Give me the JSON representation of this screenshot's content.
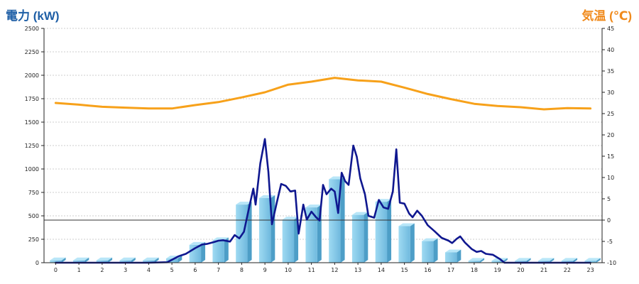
{
  "chart_data": {
    "type": "bar+line",
    "left_axis_title": "電力 (kW)",
    "right_axis_title": "気温 (℃)",
    "ylim_left": [
      0,
      2500
    ],
    "ylim_right": [
      -10,
      45
    ],
    "left_ticks": [
      0,
      250,
      500,
      750,
      1000,
      1250,
      1500,
      1750,
      2000,
      2250,
      2500
    ],
    "right_ticks": [
      -10,
      -5,
      0,
      5,
      10,
      15,
      20,
      25,
      30,
      35,
      40,
      45
    ],
    "categories": [
      "0",
      "1",
      "2",
      "3",
      "4",
      "5",
      "6",
      "7",
      "8",
      "9",
      "10",
      "11",
      "12",
      "13",
      "14",
      "15",
      "16",
      "17",
      "18",
      "19",
      "20",
      "21",
      "22",
      "23"
    ],
    "grid": true,
    "series": [
      {
        "kind": "bar",
        "axis": "left",
        "color": "#7fc8e8",
        "values": [
          25,
          25,
          25,
          25,
          25,
          45,
          190,
          240,
          620,
          690,
          460,
          590,
          890,
          510,
          650,
          390,
          230,
          110,
          20,
          20,
          20,
          20,
          20,
          20
        ]
      },
      {
        "kind": "line",
        "axis": "left",
        "color": "#0f178f",
        "points": [
          [
            0,
            0
          ],
          [
            1,
            0
          ],
          [
            2,
            0
          ],
          [
            3,
            0
          ],
          [
            4,
            0
          ],
          [
            4.8,
            5
          ],
          [
            5.3,
            70
          ],
          [
            5.6,
            95
          ],
          [
            6,
            155
          ],
          [
            6.3,
            195
          ],
          [
            6.5,
            200
          ],
          [
            6.8,
            220
          ],
          [
            7,
            235
          ],
          [
            7.2,
            240
          ],
          [
            7.5,
            225
          ],
          [
            7.7,
            295
          ],
          [
            7.9,
            260
          ],
          [
            8.1,
            330
          ],
          [
            8.3,
            565
          ],
          [
            8.5,
            790
          ],
          [
            8.6,
            620
          ],
          [
            8.8,
            1060
          ],
          [
            9,
            1320
          ],
          [
            9.15,
            970
          ],
          [
            9.3,
            410
          ],
          [
            9.5,
            630
          ],
          [
            9.7,
            840
          ],
          [
            9.9,
            820
          ],
          [
            10.1,
            760
          ],
          [
            10.3,
            770
          ],
          [
            10.45,
            310
          ],
          [
            10.65,
            620
          ],
          [
            10.8,
            460
          ],
          [
            11,
            545
          ],
          [
            11.2,
            485
          ],
          [
            11.35,
            450
          ],
          [
            11.5,
            830
          ],
          [
            11.65,
            730
          ],
          [
            11.85,
            790
          ],
          [
            12,
            760
          ],
          [
            12.15,
            530
          ],
          [
            12.3,
            960
          ],
          [
            12.45,
            870
          ],
          [
            12.6,
            830
          ],
          [
            12.8,
            1250
          ],
          [
            12.95,
            1130
          ],
          [
            13.1,
            900
          ],
          [
            13.3,
            730
          ],
          [
            13.45,
            500
          ],
          [
            13.7,
            480
          ],
          [
            13.9,
            670
          ],
          [
            14.1,
            590
          ],
          [
            14.3,
            575
          ],
          [
            14.5,
            760
          ],
          [
            14.65,
            1210
          ],
          [
            14.8,
            640
          ],
          [
            15,
            630
          ],
          [
            15.2,
            525
          ],
          [
            15.35,
            485
          ],
          [
            15.55,
            555
          ],
          [
            15.75,
            500
          ],
          [
            16,
            400
          ],
          [
            16.3,
            335
          ],
          [
            16.6,
            265
          ],
          [
            16.9,
            235
          ],
          [
            17.05,
            210
          ],
          [
            17.25,
            255
          ],
          [
            17.4,
            280
          ],
          [
            17.6,
            215
          ],
          [
            17.9,
            145
          ],
          [
            18.1,
            115
          ],
          [
            18.3,
            125
          ],
          [
            18.5,
            95
          ],
          [
            18.8,
            85
          ],
          [
            19.1,
            40
          ],
          [
            19.3,
            0
          ],
          [
            20,
            0
          ],
          [
            21,
            0
          ],
          [
            22,
            0
          ],
          [
            23,
            0
          ]
        ]
      },
      {
        "kind": "line",
        "axis": "right",
        "color": "#f7a11a",
        "points": [
          [
            0,
            27.5
          ],
          [
            1,
            27.1
          ],
          [
            2,
            26.6
          ],
          [
            3,
            26.4
          ],
          [
            4,
            26.2
          ],
          [
            5,
            26.2
          ],
          [
            6,
            27
          ],
          [
            7,
            27.7
          ],
          [
            8,
            28.8
          ],
          [
            9,
            30
          ],
          [
            10,
            31.8
          ],
          [
            11,
            32.5
          ],
          [
            12,
            33.4
          ],
          [
            13,
            32.8
          ],
          [
            14,
            32.5
          ],
          [
            15,
            31.1
          ],
          [
            16,
            29.6
          ],
          [
            17,
            28.4
          ],
          [
            18,
            27.3
          ],
          [
            19,
            26.8
          ],
          [
            20,
            26.5
          ],
          [
            21,
            26
          ],
          [
            22,
            26.3
          ],
          [
            23,
            26.2
          ]
        ]
      }
    ]
  }
}
